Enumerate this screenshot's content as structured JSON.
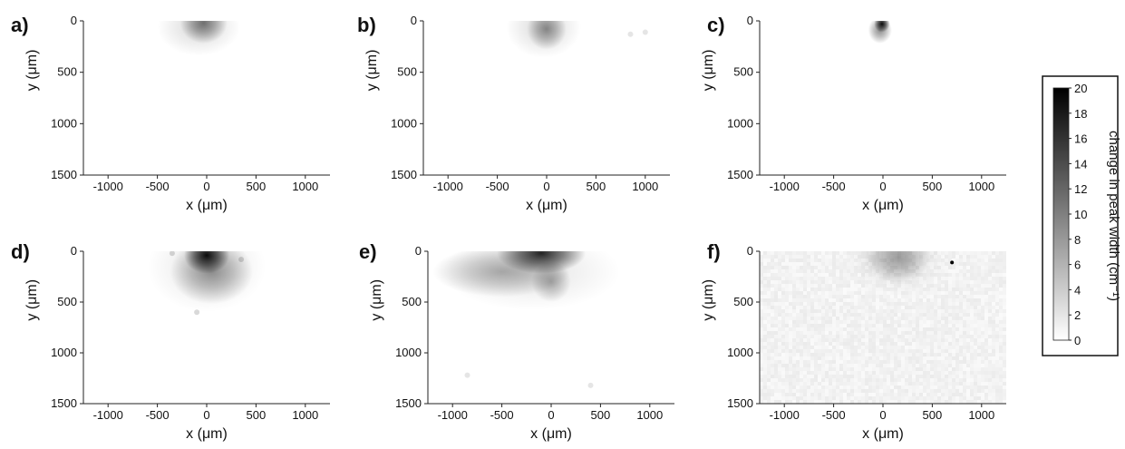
{
  "chart_data": [
    {
      "type": "heatmap",
      "panel_label": "a)",
      "xlabel": "x (μm)",
      "ylabel": "y (μm)",
      "xlim": [
        -1250,
        1250
      ],
      "ylim": [
        1500,
        0
      ],
      "x_ticks": [
        -1000,
        -500,
        0,
        500,
        1000
      ],
      "y_ticks": [
        0,
        500,
        1000,
        1500
      ],
      "blobs": [
        {
          "x": -30,
          "y": 20,
          "rx": 240,
          "ry": 200,
          "value": 10
        },
        {
          "x": -80,
          "y": 60,
          "rx": 420,
          "ry": 280,
          "value": 3
        }
      ],
      "specks": []
    },
    {
      "type": "heatmap",
      "panel_label": "b)",
      "xlabel": "x (μm)",
      "ylabel": "y (μm)",
      "xlim": [
        -1250,
        1250
      ],
      "ylim": [
        1500,
        0
      ],
      "x_ticks": [
        -1000,
        -500,
        0,
        500,
        1000
      ],
      "y_ticks": [
        0,
        500,
        1000,
        1500
      ],
      "blobs": [
        {
          "x": 0,
          "y": 80,
          "rx": 200,
          "ry": 200,
          "value": 8
        },
        {
          "x": -30,
          "y": 60,
          "rx": 380,
          "ry": 300,
          "value": 3
        }
      ],
      "specks": [
        {
          "x": 850,
          "y": 130,
          "value": 2
        },
        {
          "x": 1000,
          "y": 110,
          "value": 2
        }
      ]
    },
    {
      "type": "heatmap",
      "panel_label": "c)",
      "xlabel": "x (μm)",
      "ylabel": "y (μm)",
      "xlim": [
        -1250,
        1250
      ],
      "ylim": [
        1500,
        0
      ],
      "x_ticks": [
        -1000,
        -500,
        0,
        500,
        1000
      ],
      "y_ticks": [
        0,
        500,
        1000,
        1500
      ],
      "blobs": [
        {
          "x": -10,
          "y": 30,
          "rx": 80,
          "ry": 80,
          "value": 19
        },
        {
          "x": -30,
          "y": 90,
          "rx": 120,
          "ry": 130,
          "value": 9
        }
      ],
      "specks": []
    },
    {
      "type": "heatmap",
      "panel_label": "d)",
      "xlabel": "x (μm)",
      "ylabel": "y (μm)",
      "xlim": [
        -1250,
        1250
      ],
      "ylim": [
        1500,
        0
      ],
      "x_ticks": [
        -1000,
        -500,
        0,
        500,
        1000
      ],
      "y_ticks": [
        0,
        500,
        1000,
        1500
      ],
      "blobs": [
        {
          "x": 0,
          "y": 40,
          "rx": 230,
          "ry": 180,
          "value": 19
        },
        {
          "x": 50,
          "y": 200,
          "rx": 420,
          "ry": 320,
          "value": 8
        },
        {
          "x": 0,
          "y": 150,
          "rx": 600,
          "ry": 450,
          "value": 2
        }
      ],
      "specks": [
        {
          "x": -350,
          "y": 20,
          "value": 3
        },
        {
          "x": 350,
          "y": 80,
          "value": 3
        },
        {
          "x": -100,
          "y": 600,
          "value": 3
        }
      ]
    },
    {
      "type": "heatmap",
      "panel_label": "e)",
      "xlabel": "x (μm)",
      "ylabel": "y (μm)",
      "xlim": [
        -1250,
        1250
      ],
      "ylim": [
        1500,
        0
      ],
      "x_ticks": [
        -1000,
        -500,
        0,
        500,
        1000
      ],
      "y_ticks": [
        0,
        500,
        1000,
        1500
      ],
      "blobs": [
        {
          "x": -100,
          "y": 20,
          "rx": 450,
          "ry": 200,
          "value": 17
        },
        {
          "x": -500,
          "y": 200,
          "rx": 700,
          "ry": 250,
          "value": 6
        },
        {
          "x": -200,
          "y": 200,
          "rx": 900,
          "ry": 380,
          "value": 2
        },
        {
          "x": 0,
          "y": 300,
          "rx": 200,
          "ry": 200,
          "value": 6
        }
      ],
      "specks": [
        {
          "x": -850,
          "y": 1220,
          "value": 2
        },
        {
          "x": 400,
          "y": 1320,
          "value": 2
        }
      ]
    },
    {
      "type": "heatmap",
      "panel_label": "f)",
      "xlabel": "x (μm)",
      "ylabel": "y (μm)",
      "xlim": [
        -1250,
        1250
      ],
      "ylim": [
        1500,
        0
      ],
      "x_ticks": [
        -1000,
        -500,
        0,
        500,
        1000
      ],
      "y_ticks": [
        0,
        500,
        1000,
        1500
      ],
      "background_noise": 1,
      "blobs": [
        {
          "x": 150,
          "y": 60,
          "rx": 330,
          "ry": 250,
          "value": 6
        },
        {
          "x": 150,
          "y": 60,
          "rx": 500,
          "ry": 350,
          "value": 2
        }
      ],
      "specks": [
        {
          "x": 700,
          "y": 110,
          "value": 20
        }
      ]
    }
  ],
  "colorbar": {
    "label": "change in peak width (cm⁻¹)",
    "min": 0,
    "max": 20,
    "ticks": [
      "20",
      "18",
      "16",
      "14",
      "12",
      "10",
      "8",
      "6",
      "4",
      "2",
      "0"
    ],
    "color_low": "#ffffff",
    "color_high": "#000000"
  }
}
